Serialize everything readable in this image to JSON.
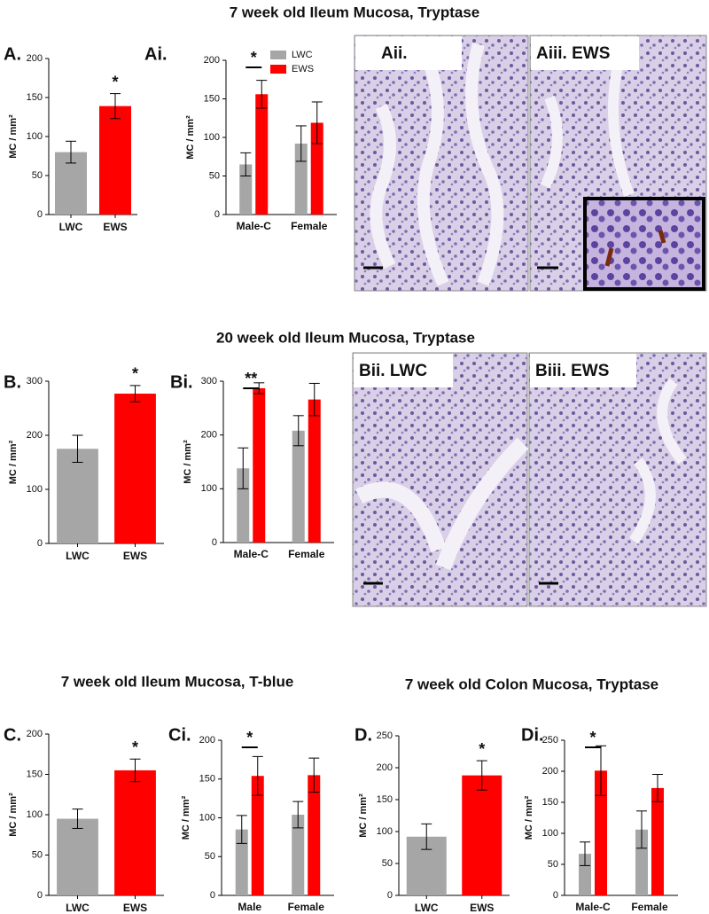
{
  "sections": [
    "7 week old Ileum Mucosa, Tryptase",
    "20 week old Ileum Mucosa, Tryptase",
    "7 week old Ileum Mucosa, T-blue",
    "7 week old Colon Mucosa, Tryptase"
  ],
  "images": [
    "Aii.",
    "Aiii. EWS",
    "Bii. LWC",
    "Biii. EWS"
  ],
  "chart_data": [
    {
      "type": "bar",
      "panel": "A.",
      "ylabel": "MC / mm²",
      "categories": [
        "LWC",
        "EWS"
      ],
      "values": [
        80,
        139
      ],
      "errors": [
        14,
        16
      ],
      "colors": [
        "#a6a6a6",
        "#ff0000"
      ],
      "ylim": [
        0,
        200
      ],
      "yticks": [
        0,
        50,
        100,
        150,
        200
      ],
      "annotation": "*"
    },
    {
      "type": "grouped-bar",
      "panel": "Ai.",
      "ylabel": "MC / mm²",
      "categories": [
        "Male-C",
        "Female"
      ],
      "series": [
        {
          "name": "LWC",
          "color": "#a6a6a6",
          "values": [
            65,
            92
          ],
          "errors": [
            15,
            23
          ]
        },
        {
          "name": "EWS",
          "color": "#ff0000",
          "values": [
            156,
            119
          ],
          "errors": [
            18,
            27
          ]
        }
      ],
      "ylim": [
        0,
        200
      ],
      "yticks": [
        0,
        50,
        100,
        150,
        200
      ],
      "annotation": "*",
      "legend": "top-right"
    },
    {
      "type": "bar",
      "panel": "B.",
      "ylabel": "MC / mm²",
      "categories": [
        "LWC",
        "EWS"
      ],
      "values": [
        175,
        277
      ],
      "errors": [
        25,
        15
      ],
      "colors": [
        "#a6a6a6",
        "#ff0000"
      ],
      "ylim": [
        0,
        300
      ],
      "yticks": [
        0,
        100,
        200,
        300
      ],
      "annotation": "*"
    },
    {
      "type": "grouped-bar",
      "panel": "Bi.",
      "ylabel": "MC / mm²",
      "categories": [
        "Male-C",
        "Female"
      ],
      "series": [
        {
          "name": "LWC",
          "color": "#a6a6a6",
          "values": [
            138,
            208
          ],
          "errors": [
            38,
            28
          ]
        },
        {
          "name": "EWS",
          "color": "#ff0000",
          "values": [
            287,
            266
          ],
          "errors": [
            10,
            30
          ]
        }
      ],
      "ylim": [
        0,
        300
      ],
      "yticks": [
        0,
        100,
        200,
        300
      ],
      "annotation": "**"
    },
    {
      "type": "bar",
      "panel": "C.",
      "ylabel": "MC / mm²",
      "categories": [
        "LWC",
        "EWS"
      ],
      "values": [
        95,
        155
      ],
      "errors": [
        12,
        14
      ],
      "colors": [
        "#a6a6a6",
        "#ff0000"
      ],
      "ylim": [
        0,
        200
      ],
      "yticks": [
        0,
        50,
        100,
        150,
        200
      ],
      "annotation": "*"
    },
    {
      "type": "grouped-bar",
      "panel": "Ci.",
      "ylabel": "MC / mm²",
      "categories": [
        "Male",
        "Female"
      ],
      "series": [
        {
          "name": "LWC",
          "color": "#a6a6a6",
          "values": [
            85,
            104
          ],
          "errors": [
            18,
            17
          ]
        },
        {
          "name": "EWS",
          "color": "#ff0000",
          "values": [
            154,
            155
          ],
          "errors": [
            25,
            22
          ]
        }
      ],
      "ylim": [
        0,
        200
      ],
      "yticks": [
        0,
        50,
        100,
        150,
        200
      ],
      "annotation": "*"
    },
    {
      "type": "bar",
      "panel": "D.",
      "ylabel": "MC / mm²",
      "categories": [
        "LWC",
        "EWS"
      ],
      "values": [
        92,
        188
      ],
      "errors": [
        20,
        23
      ],
      "colors": [
        "#a6a6a6",
        "#ff0000"
      ],
      "ylim": [
        0,
        250
      ],
      "yticks": [
        0,
        50,
        100,
        150,
        200,
        250
      ],
      "annotation": "*"
    },
    {
      "type": "grouped-bar",
      "panel": "Di.",
      "ylabel": "MC / mm²",
      "categories": [
        "Male-C",
        "Female"
      ],
      "series": [
        {
          "name": "LWC",
          "color": "#a6a6a6",
          "values": [
            67,
            106
          ],
          "errors": [
            19,
            30
          ]
        },
        {
          "name": "EWS",
          "color": "#ff0000",
          "values": [
            201,
            173
          ],
          "errors": [
            40,
            22
          ]
        }
      ],
      "ylim": [
        0,
        250
      ],
      "yticks": [
        0,
        50,
        100,
        150,
        200,
        250
      ],
      "annotation": "*"
    }
  ]
}
